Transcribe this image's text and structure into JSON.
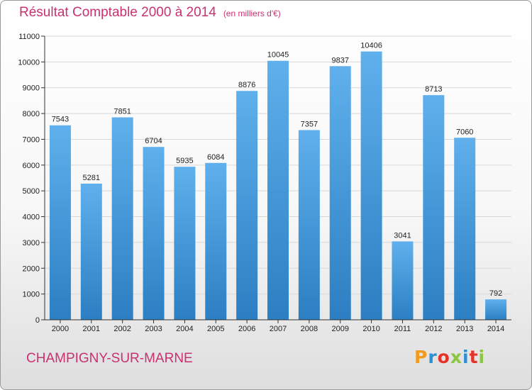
{
  "header": {
    "title": "Résultat Comptable 2000 à 2014",
    "unit": "(en milliers d'€)"
  },
  "footer": {
    "city": "CHAMPIGNY-SUR-MARNE",
    "logo": "Proxiti"
  },
  "colors": {
    "title": "#c8326e",
    "bar_light": "#5fb0ec",
    "bar_dark": "#2b7fc2",
    "gridline": "#d8d8d8"
  },
  "chart_data": {
    "type": "bar",
    "title": "Résultat Comptable 2000 à 2014",
    "subtitle": "(en milliers d'€)",
    "xlabel": "",
    "ylabel": "",
    "categories": [
      "2000",
      "2001",
      "2002",
      "2003",
      "2004",
      "2005",
      "2006",
      "2007",
      "2008",
      "2009",
      "2010",
      "2011",
      "2012",
      "2013",
      "2014"
    ],
    "values": [
      7543,
      5281,
      7851,
      6704,
      5935,
      6084,
      8876,
      10045,
      7357,
      9837,
      10406,
      3041,
      8713,
      7060,
      792
    ],
    "ylim": [
      0,
      11000
    ],
    "yticks": [
      0,
      1000,
      2000,
      3000,
      4000,
      5000,
      6000,
      7000,
      8000,
      9000,
      10000,
      11000
    ],
    "grid": true,
    "legend": "none",
    "data_labels": true
  }
}
